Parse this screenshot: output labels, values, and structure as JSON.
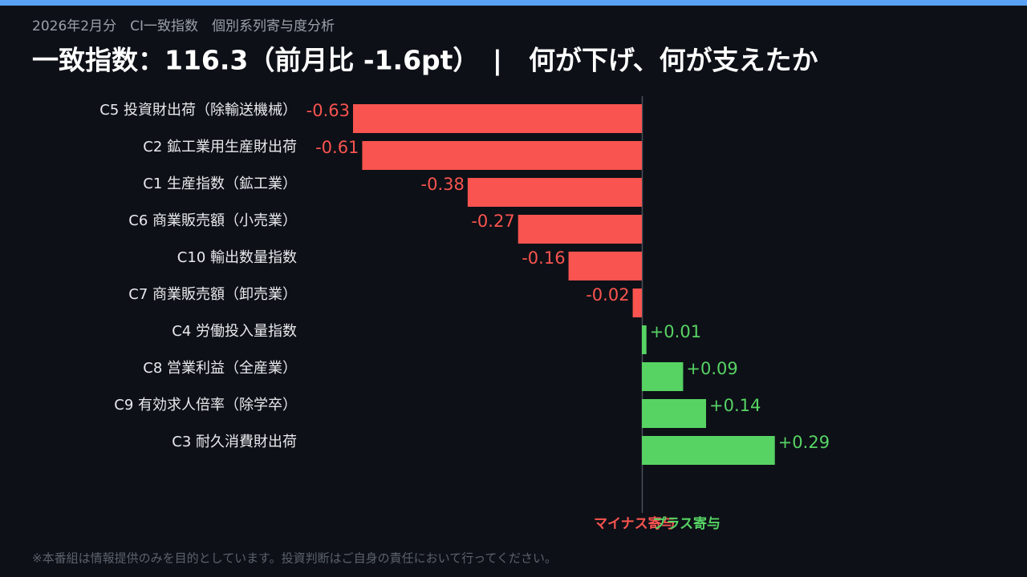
{
  "chart_data": {
    "type": "bar",
    "orientation": "horizontal",
    "subtitle": "2026年2月分　CI一致指数　個別系列寄与度分析",
    "title": "一致指数：116.3（前月比 -1.6pt）　|　何が下げ、何が支えたか",
    "categories": [
      "C5 投資財出荷（除輸送機械）",
      "C2 鉱工業用生産財出荷",
      "C1 生産指数（鉱工業）",
      "C6 商業販売額（小売業）",
      "C10 輸出数量指数",
      "C7 商業販売額（卸売業）",
      "C4 労働投入量指数",
      "C8 営業利益（全産業）",
      "C9 有効求人倍率（除学卒）",
      "C3 耐久消費財出荷"
    ],
    "values": [
      -0.63,
      -0.61,
      -0.38,
      -0.27,
      -0.16,
      -0.02,
      0.01,
      0.09,
      0.14,
      0.29
    ],
    "value_labels": [
      "-0.63",
      "-0.61",
      "-0.38",
      "-0.27",
      "-0.16",
      "-0.02",
      "+0.01",
      "+0.09",
      "+0.14",
      "+0.29"
    ],
    "negative_color": "#f9544f",
    "positive_color": "#57d364",
    "negative_label": "マイナス寄与",
    "positive_label": "プラス寄与",
    "xlim": [
      -0.7,
      0.7
    ],
    "footer": "※本番組は情報提供のみを目的としています。投資判断はご自身の責任において行ってください。"
  }
}
